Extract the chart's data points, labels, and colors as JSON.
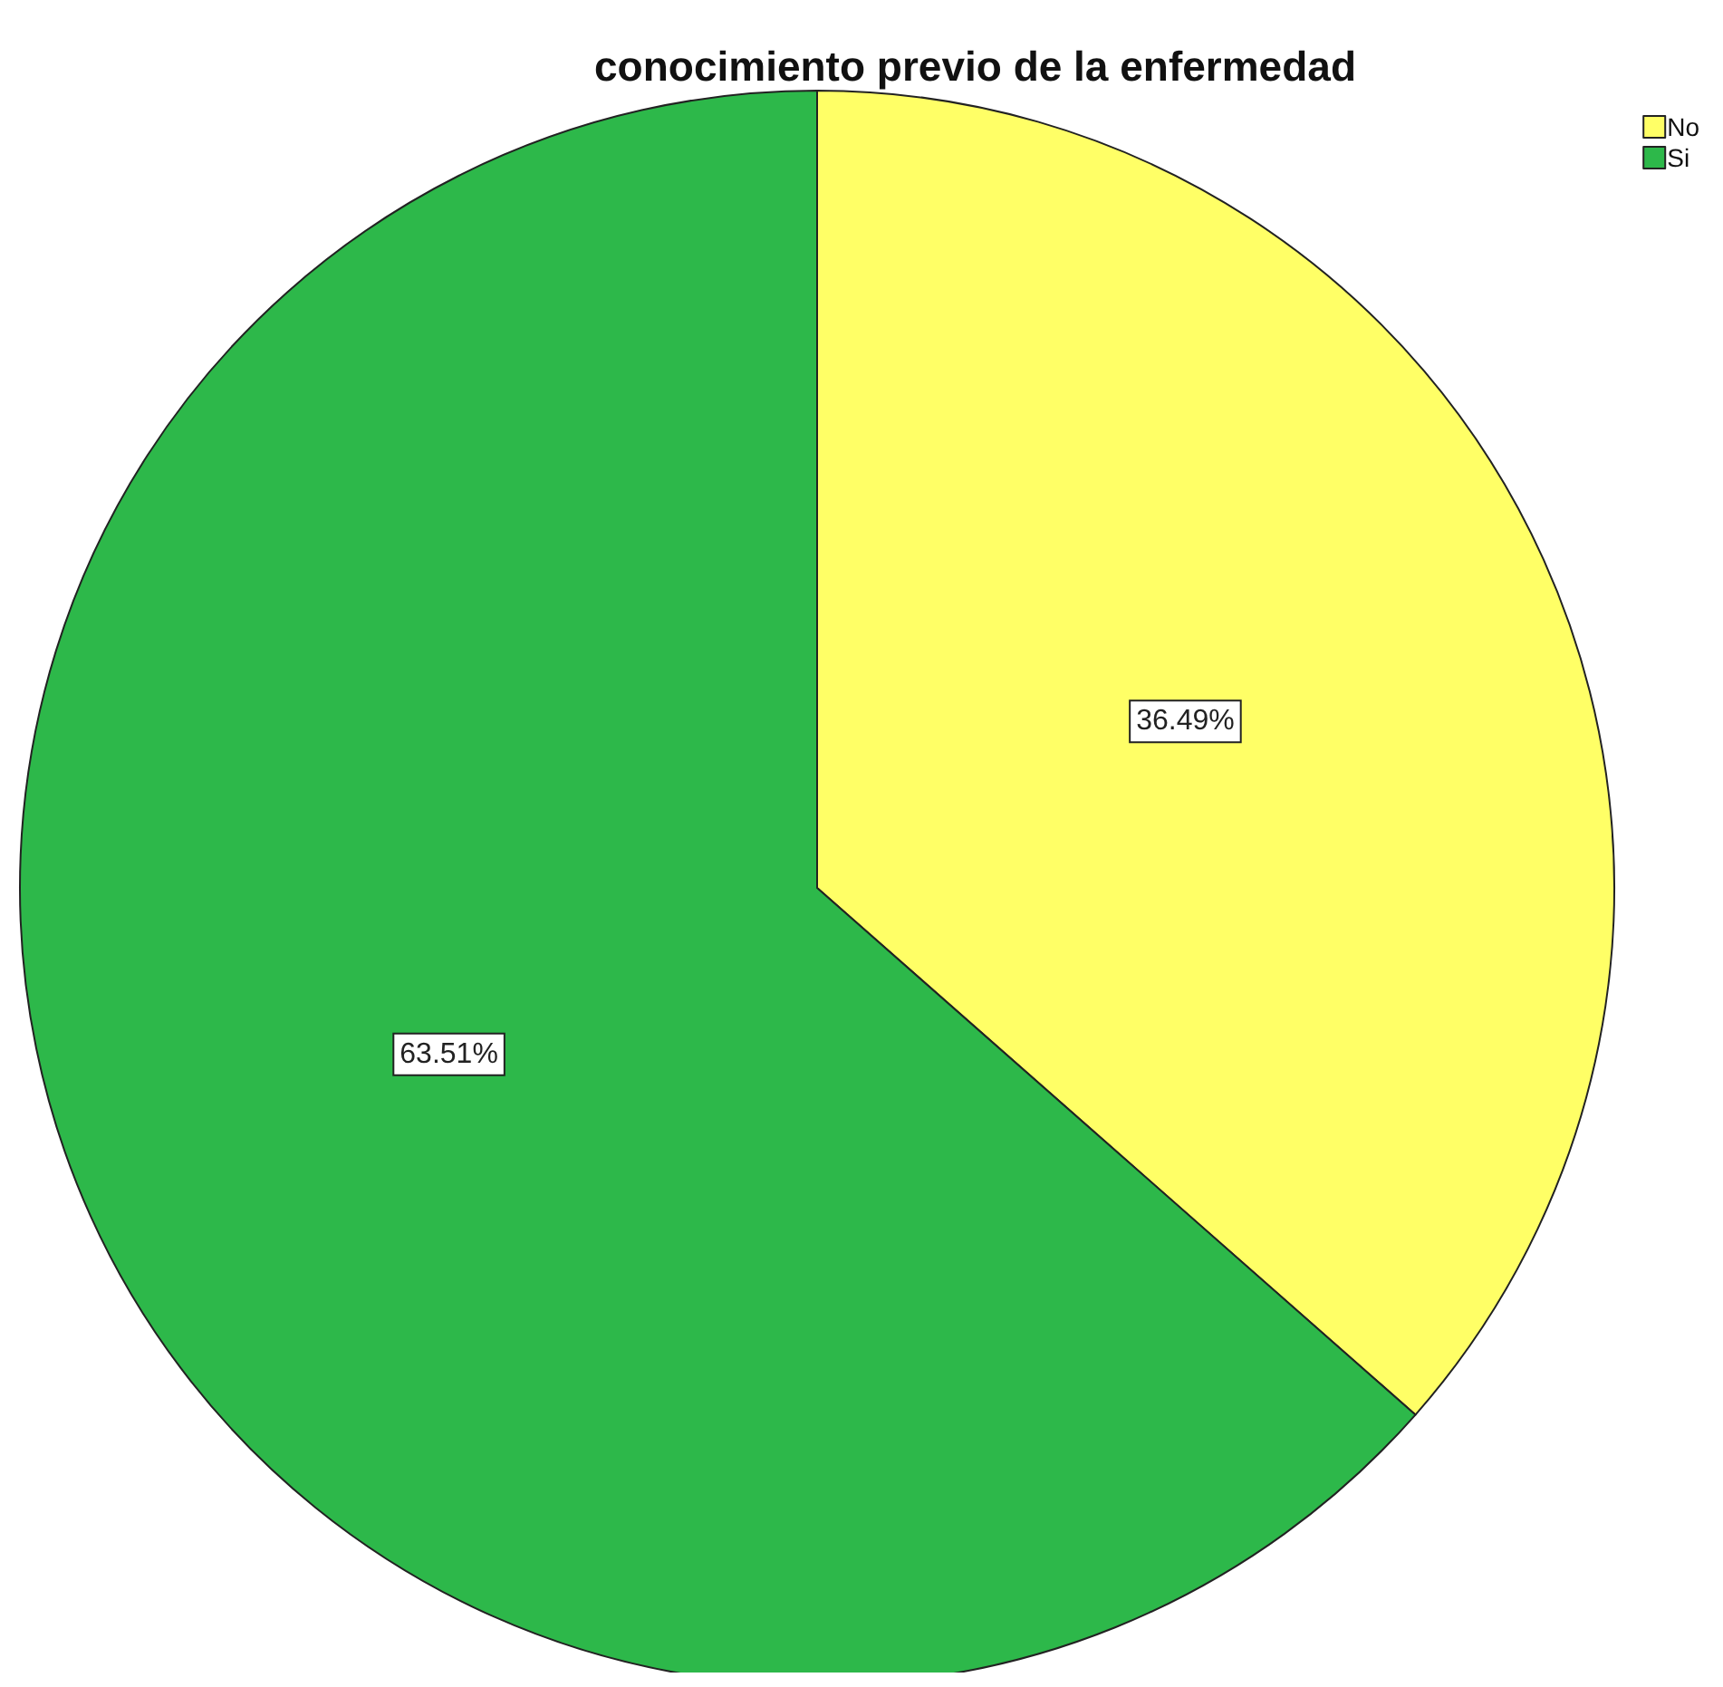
{
  "chart_data": {
    "type": "pie",
    "title": "conocimiento previo de la enfermedad",
    "categories": [
      "No",
      "Si"
    ],
    "values": [
      36.49,
      63.51
    ],
    "colors": [
      "#ffff66",
      "#2db84a"
    ],
    "value_labels": [
      "36.49%",
      "63.51%"
    ],
    "legend": "top right"
  }
}
